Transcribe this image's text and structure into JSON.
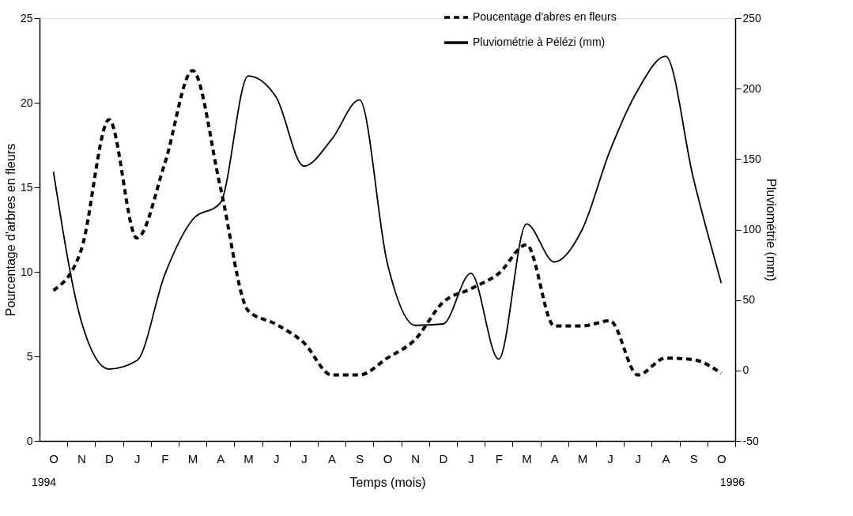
{
  "chart_data": {
    "type": "line",
    "xlabel": "Temps (mois)",
    "ylabel": "Pourcentage d'arbres en fleurs",
    "y2label": "Pluviométrie (mm)",
    "categories": [
      "O",
      "N",
      "D",
      "J",
      "F",
      "M",
      "A",
      "M",
      "J",
      "J",
      "A",
      "S",
      "O",
      "N",
      "D",
      "J",
      "F",
      "M",
      "A",
      "M",
      "J",
      "J",
      "A",
      "S",
      "O"
    ],
    "ylim": [
      0,
      25
    ],
    "yticks": [
      0,
      5,
      10,
      15,
      20,
      25
    ],
    "y2lim": [
      -50,
      250
    ],
    "y2ticks": [
      -50,
      0,
      50,
      100,
      150,
      200,
      250
    ],
    "grid": false,
    "legend": "top right",
    "marker": "none",
    "annotations": [
      "1994",
      "1996"
    ],
    "series": [
      {
        "name": "Poucentage d'abres en fleurs",
        "color": "#000000",
        "line_style": "dashed",
        "values": [
          8.9,
          11.3,
          19.0,
          12.0,
          16.4,
          21.9,
          15.0,
          7.7,
          6.9,
          5.8,
          3.9,
          3.9,
          4.9,
          6.0,
          8.2,
          9.0,
          9.9,
          11.6,
          6.8,
          6.8,
          7.1,
          3.9,
          4.9,
          4.8,
          4.0
        ]
      },
      {
        "name": "Pluviométrie à Pélézi (mm)",
        "color": "#000000",
        "line_style": "solid",
        "axis": "y2",
        "values": [
          141,
          35,
          1,
          7,
          68,
          107,
          119,
          209,
          194,
          145,
          164,
          192,
          76,
          32,
          33,
          69,
          8,
          104,
          77,
          100,
          156,
          199,
          223,
          136,
          62
        ]
      }
    ]
  }
}
